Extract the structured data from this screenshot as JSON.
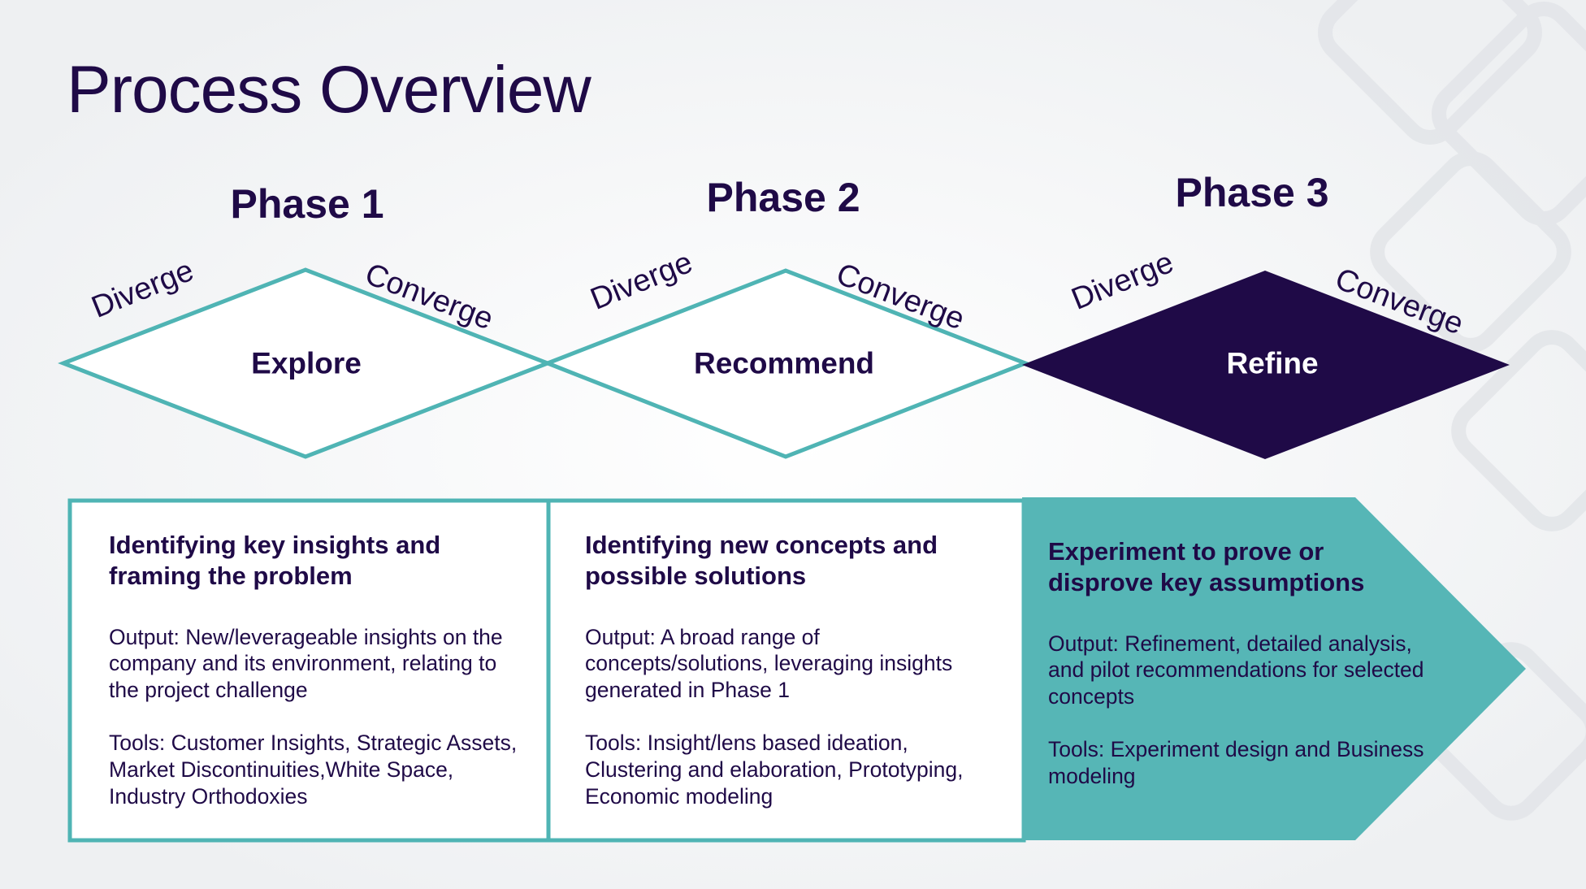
{
  "page_title": "Process Overview",
  "colors": {
    "primary": "#1f0a47",
    "teal": "#4fb4b4",
    "background": "#f1f2f4",
    "white": "#ffffff"
  },
  "phases": [
    {
      "title": "Phase 1",
      "diverge": "Diverge",
      "converge": "Converge",
      "center": "Explore",
      "heading": "Identifying key insights and framing the problem",
      "output": "Output: New/leverageable insights on the company and its environment, relating to the project challenge",
      "tools": "Tools: Customer Insights, Strategic Assets, Market Discontinuities,White Space, Industry Orthodoxies"
    },
    {
      "title": "Phase 2",
      "diverge": "Diverge",
      "converge": "Converge",
      "center": "Recommend",
      "heading": "Identifying new concepts and possible solutions",
      "output": "Output: A broad range of concepts/solutions, leveraging insights generated in Phase 1",
      "tools": "Tools: Insight/lens based ideation, Clustering and elaboration, Prototyping, Economic modeling"
    },
    {
      "title": "Phase 3",
      "diverge": "Diverge",
      "converge": "Converge",
      "center": "Refine",
      "heading": "Experiment to prove or disprove key assumptions",
      "output": "Output: Refinement, detailed analysis, and pilot recommendations for selected concepts",
      "tools": "Tools: Experiment design and Business modeling"
    }
  ]
}
